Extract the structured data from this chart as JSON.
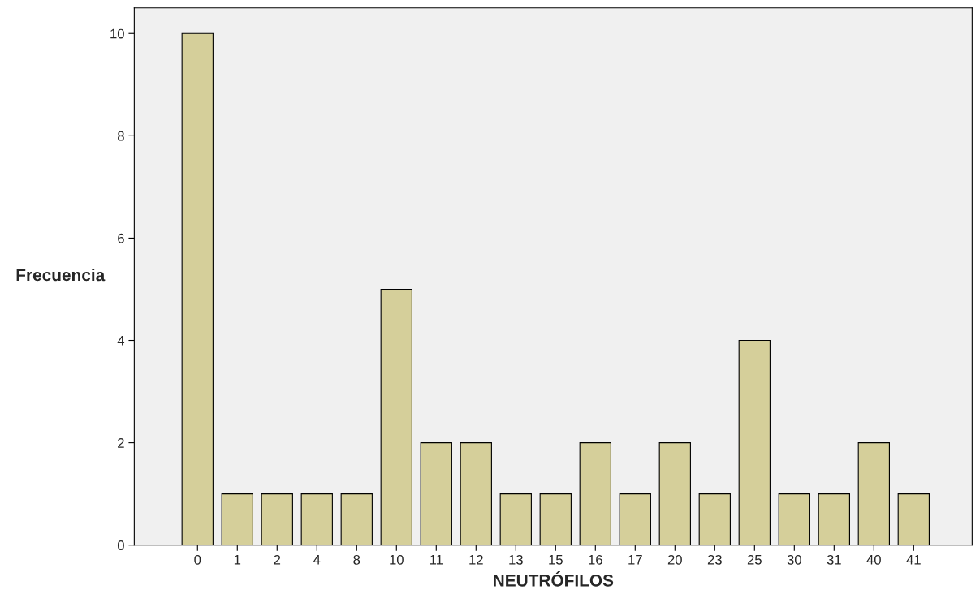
{
  "chart_data": {
    "type": "bar",
    "xlabel": "NEUTRÓFILOS",
    "ylabel": "Frecuencia",
    "categories": [
      "0",
      "1",
      "2",
      "4",
      "8",
      "10",
      "11",
      "12",
      "13",
      "15",
      "16",
      "17",
      "20",
      "23",
      "25",
      "30",
      "31",
      "40",
      "41"
    ],
    "values": [
      10,
      1,
      1,
      1,
      1,
      5,
      2,
      2,
      1,
      1,
      2,
      1,
      2,
      1,
      4,
      1,
      1,
      2,
      1
    ],
    "color": "#d5cf9a",
    "ylim": [
      0,
      10.5
    ],
    "yticks": [
      0,
      2,
      4,
      6,
      8,
      10
    ],
    "grid": false,
    "legend": false
  }
}
